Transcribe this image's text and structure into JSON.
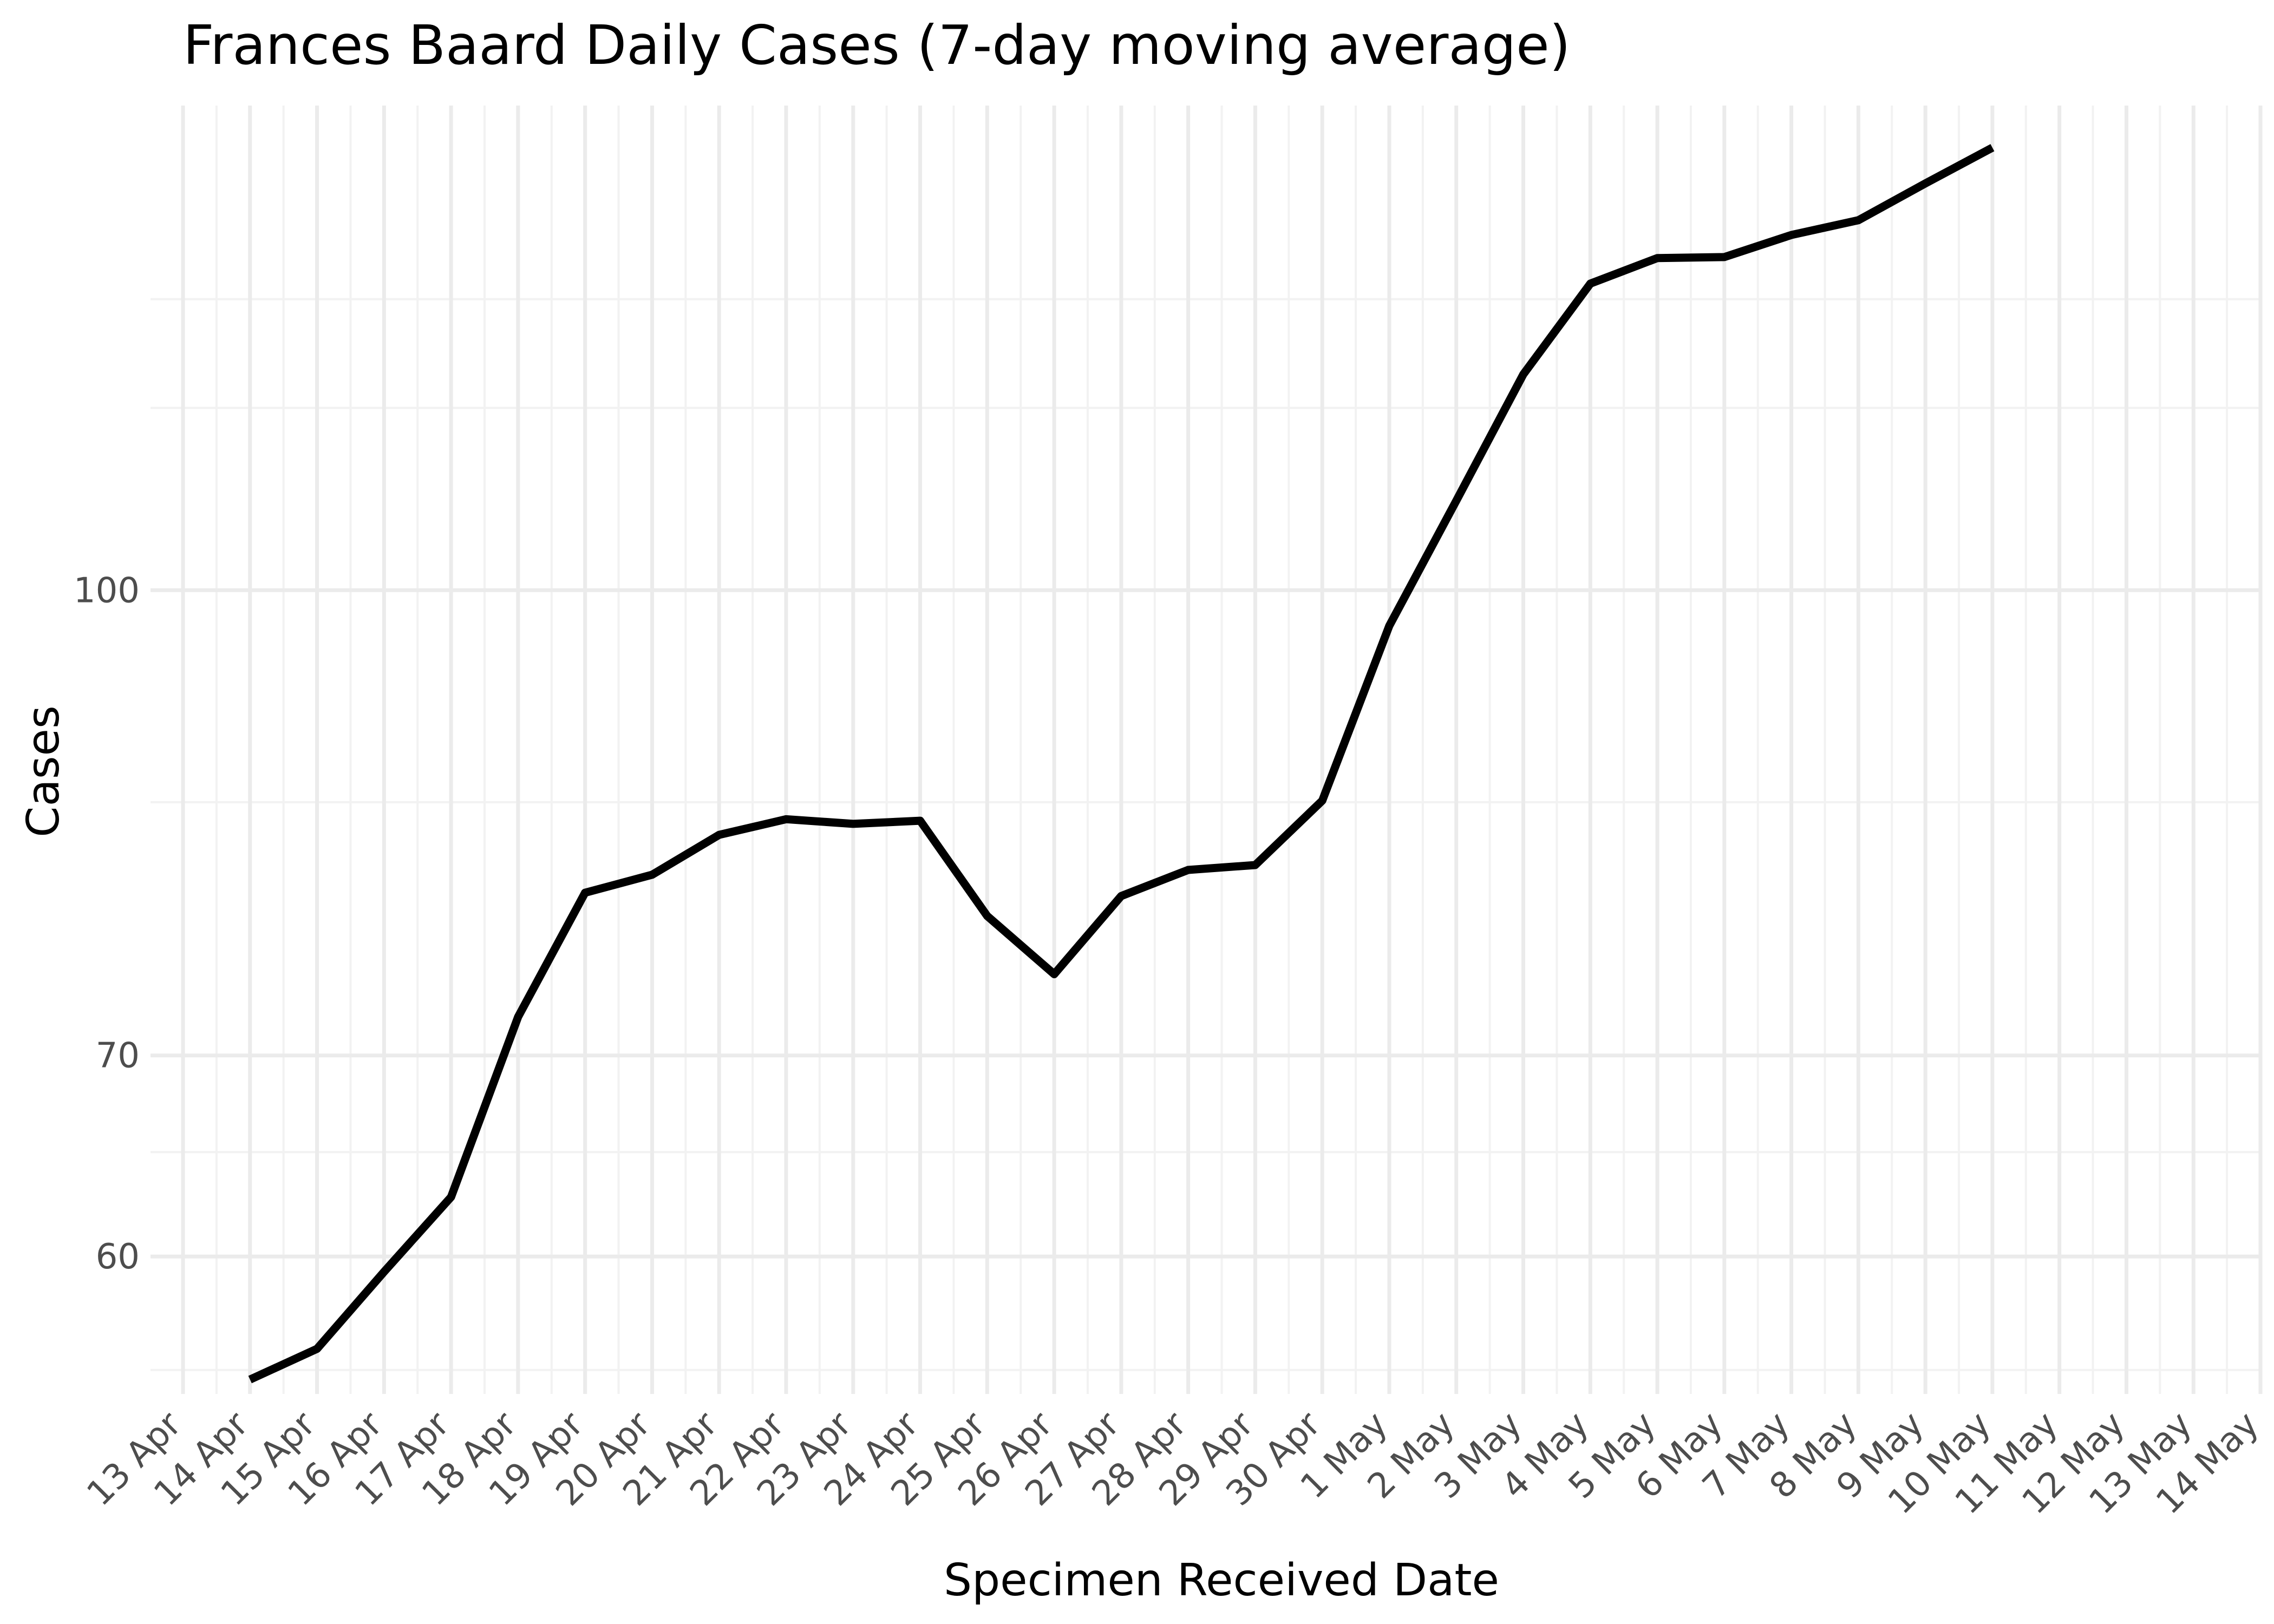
{
  "chart_data": {
    "type": "line",
    "title": "Frances Baard Daily Cases (7-day moving average)",
    "xlabel": "Specimen Received Date",
    "ylabel": "Cases",
    "y_scale": "log",
    "grid": true,
    "legend": "none",
    "ylim": [
      54,
      145
    ],
    "xlim": [
      "13 Apr",
      "14 May"
    ],
    "x_ticks": [
      "13 Apr",
      "14 Apr",
      "15 Apr",
      "16 Apr",
      "17 Apr",
      "18 Apr",
      "19 Apr",
      "20 Apr",
      "21 Apr",
      "22 Apr",
      "23 Apr",
      "24 Apr",
      "25 Apr",
      "26 Apr",
      "27 Apr",
      "28 Apr",
      "29 Apr",
      "30 Apr",
      "1 May",
      "2 May",
      "3 May",
      "4 May",
      "5 May",
      "6 May",
      "7 May",
      "8 May",
      "9 May",
      "10 May",
      "11 May",
      "12 May",
      "13 May",
      "14 May"
    ],
    "y_ticks": [
      {
        "value": 60,
        "label": "60"
      },
      {
        "value": 70,
        "label": "70"
      },
      {
        "value": 100,
        "label": "100"
      }
    ],
    "y_minor_ticks": [
      55,
      65,
      85,
      115,
      125
    ],
    "series": [
      {
        "x": [
          "14 Apr",
          "15 Apr",
          "16 Apr",
          "17 Apr",
          "18 Apr",
          "19 Apr",
          "20 Apr",
          "21 Apr",
          "22 Apr",
          "23 Apr",
          "24 Apr",
          "25 Apr",
          "26 Apr",
          "27 Apr",
          "28 Apr",
          "29 Apr",
          "30 Apr",
          "1 May",
          "2 May",
          "3 May",
          "4 May",
          "5 May",
          "6 May",
          "7 May",
          "8 May",
          "9 May",
          "10 May"
        ],
        "y": [
          54.6,
          55.9,
          59.3,
          62.8,
          72.1,
          79.3,
          80.4,
          82.9,
          83.9,
          83.6,
          83.8,
          77.9,
          74.5,
          79.1,
          80.7,
          81.0,
          85.1,
          97.3,
          107.1,
          118.0,
          126.5,
          129.0,
          129.1,
          131.3,
          132.8,
          136.6,
          140.4
        ],
        "color": "#000000"
      }
    ]
  }
}
